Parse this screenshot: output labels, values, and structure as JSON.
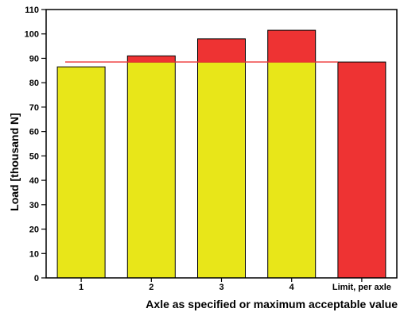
{
  "chart_data": {
    "type": "bar",
    "title": "",
    "xlabel": "Axle as specified or maximum acceptable value",
    "ylabel": "Load [thousand N]",
    "ylim": [
      0,
      110
    ],
    "yticks": [
      0,
      10,
      20,
      30,
      40,
      50,
      60,
      70,
      80,
      90,
      100,
      110
    ],
    "categories": [
      "1",
      "2",
      "3",
      "4",
      "Limit, per axle"
    ],
    "limit": 88.5,
    "series": [
      {
        "name": "",
        "values": [
          86.5,
          88.5,
          88.5,
          88.5,
          0
        ]
      },
      {
        "name": "",
        "values": [
          0,
          2.5,
          9.5,
          13,
          88.5
        ]
      }
    ],
    "colors": {
      "within": "#e8e619",
      "excess": "#ee3333",
      "limit_line": "#ee3333",
      "axis": "#000000"
    },
    "grid": false,
    "legend": "none"
  }
}
